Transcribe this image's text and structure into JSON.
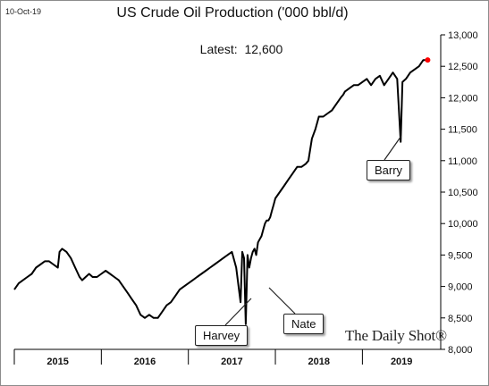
{
  "header": {
    "date": "10-Oct-19",
    "latest_label": "Latest:",
    "latest_value": "12,600",
    "brand": "The Daily Shot®"
  },
  "colors": {
    "line": "#000000",
    "marker": "#ff0000",
    "axis": "#000000"
  },
  "chart_data": {
    "type": "line",
    "title": "US Crude Oil Production ('000 bbl/d)",
    "xlabel": "",
    "ylabel": "",
    "ylim": [
      8000,
      13000
    ],
    "yticks": [
      8000,
      8500,
      9000,
      9500,
      10000,
      10500,
      11000,
      11500,
      12000,
      12500,
      13000
    ],
    "ytick_labels": [
      "8,000",
      "8,500",
      "9,000",
      "9,500",
      "10,000",
      "10,500",
      "11,000",
      "11,500",
      "12,000",
      "12,500",
      "13,000"
    ],
    "x_categories": [
      "2015",
      "2016",
      "2017",
      "2018",
      "2019"
    ],
    "xlim": [
      2015.0,
      2019.9
    ],
    "grid": false,
    "series": [
      {
        "x": [
          2015.0,
          2015.05,
          2015.1,
          2015.15,
          2015.2,
          2015.25,
          2015.3,
          2015.35,
          2015.4,
          2015.45,
          2015.5,
          2015.52,
          2015.55,
          2015.6,
          2015.65,
          2015.7,
          2015.75,
          2015.78,
          2015.82,
          2015.86,
          2015.9,
          2015.95,
          2016.0,
          2016.05,
          2016.1,
          2016.15,
          2016.2,
          2016.25,
          2016.3,
          2016.35,
          2016.4,
          2016.45,
          2016.5,
          2016.55,
          2016.6,
          2016.65,
          2016.7,
          2016.75,
          2016.8,
          2016.85,
          2016.9,
          2016.95,
          2017.0,
          2017.05,
          2017.1,
          2017.15,
          2017.2,
          2017.25,
          2017.3,
          2017.35,
          2017.4,
          2017.45,
          2017.5,
          2017.55,
          2017.6,
          2017.62,
          2017.64,
          2017.66,
          2017.68,
          2017.7,
          2017.72,
          2017.74,
          2017.76,
          2017.78,
          2017.8,
          2017.82,
          2017.84,
          2017.86,
          2017.88,
          2017.9,
          2017.92,
          2017.94,
          2017.96,
          2017.98,
          2018.0,
          2018.05,
          2018.1,
          2018.15,
          2018.2,
          2018.25,
          2018.3,
          2018.35,
          2018.38,
          2018.42,
          2018.46,
          2018.5,
          2018.55,
          2018.6,
          2018.65,
          2018.7,
          2018.75,
          2018.78,
          2018.8,
          2018.85,
          2018.9,
          2018.95,
          2019.0,
          2019.05,
          2019.1,
          2019.15,
          2019.2,
          2019.25,
          2019.3,
          2019.35,
          2019.4,
          2019.44,
          2019.46,
          2019.5,
          2019.55,
          2019.6,
          2019.65,
          2019.7,
          2019.75
        ],
        "y": [
          8950,
          9050,
          9100,
          9150,
          9200,
          9300,
          9350,
          9400,
          9400,
          9350,
          9300,
          9550,
          9600,
          9550,
          9450,
          9300,
          9150,
          9100,
          9150,
          9200,
          9150,
          9150,
          9200,
          9250,
          9200,
          9150,
          9100,
          9000,
          8900,
          8800,
          8700,
          8550,
          8500,
          8550,
          8500,
          8500,
          8600,
          8700,
          8750,
          8850,
          8950,
          9000,
          9050,
          9100,
          9150,
          9200,
          9250,
          9300,
          9350,
          9400,
          9450,
          9500,
          9550,
          9300,
          8750,
          9550,
          9450,
          8400,
          9500,
          9300,
          9450,
          9550,
          9600,
          9500,
          9700,
          9750,
          9800,
          9900,
          10000,
          10050,
          10050,
          10100,
          10200,
          10300,
          10400,
          10500,
          10600,
          10700,
          10800,
          10900,
          10900,
          10950,
          11000,
          11350,
          11500,
          11700,
          11700,
          11750,
          11800,
          11900,
          12000,
          12050,
          12100,
          12150,
          12200,
          12200,
          12250,
          12300,
          12200,
          12300,
          12350,
          12200,
          12300,
          12400,
          12300,
          11300,
          12250,
          12300,
          12400,
          12450,
          12500,
          12600,
          12600
        ]
      }
    ],
    "annotations": [
      "Harvey",
      "Nate",
      "Barry"
    ]
  }
}
